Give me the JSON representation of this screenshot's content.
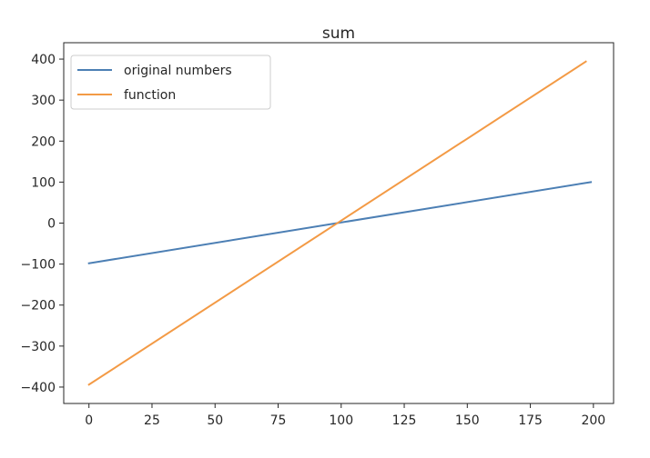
{
  "chart_data": {
    "type": "line",
    "title": "sum",
    "xlabel": "",
    "ylabel": "",
    "xlim": [
      -10,
      208
    ],
    "ylim": [
      -440,
      440
    ],
    "x_ticks": [
      0,
      25,
      50,
      75,
      100,
      125,
      150,
      175,
      200
    ],
    "y_ticks": [
      -400,
      -300,
      -200,
      -100,
      0,
      100,
      200,
      300,
      400
    ],
    "x_tick_labels": [
      "0",
      "25",
      "50",
      "75",
      "100",
      "125",
      "150",
      "175",
      "200"
    ],
    "y_tick_labels": [
      "−400",
      "−300",
      "−200",
      "−100",
      "0",
      "100",
      "200",
      "300",
      "400"
    ],
    "grid": false,
    "legend_position": "top-left",
    "series": [
      {
        "name": "original numbers",
        "color": "#4c7fb4",
        "x": [
          0,
          199
        ],
        "y": [
          -98,
          100
        ]
      },
      {
        "name": "function",
        "color": "#f39a45",
        "x": [
          0,
          197
        ],
        "y": [
          -394,
          394
        ]
      }
    ]
  }
}
